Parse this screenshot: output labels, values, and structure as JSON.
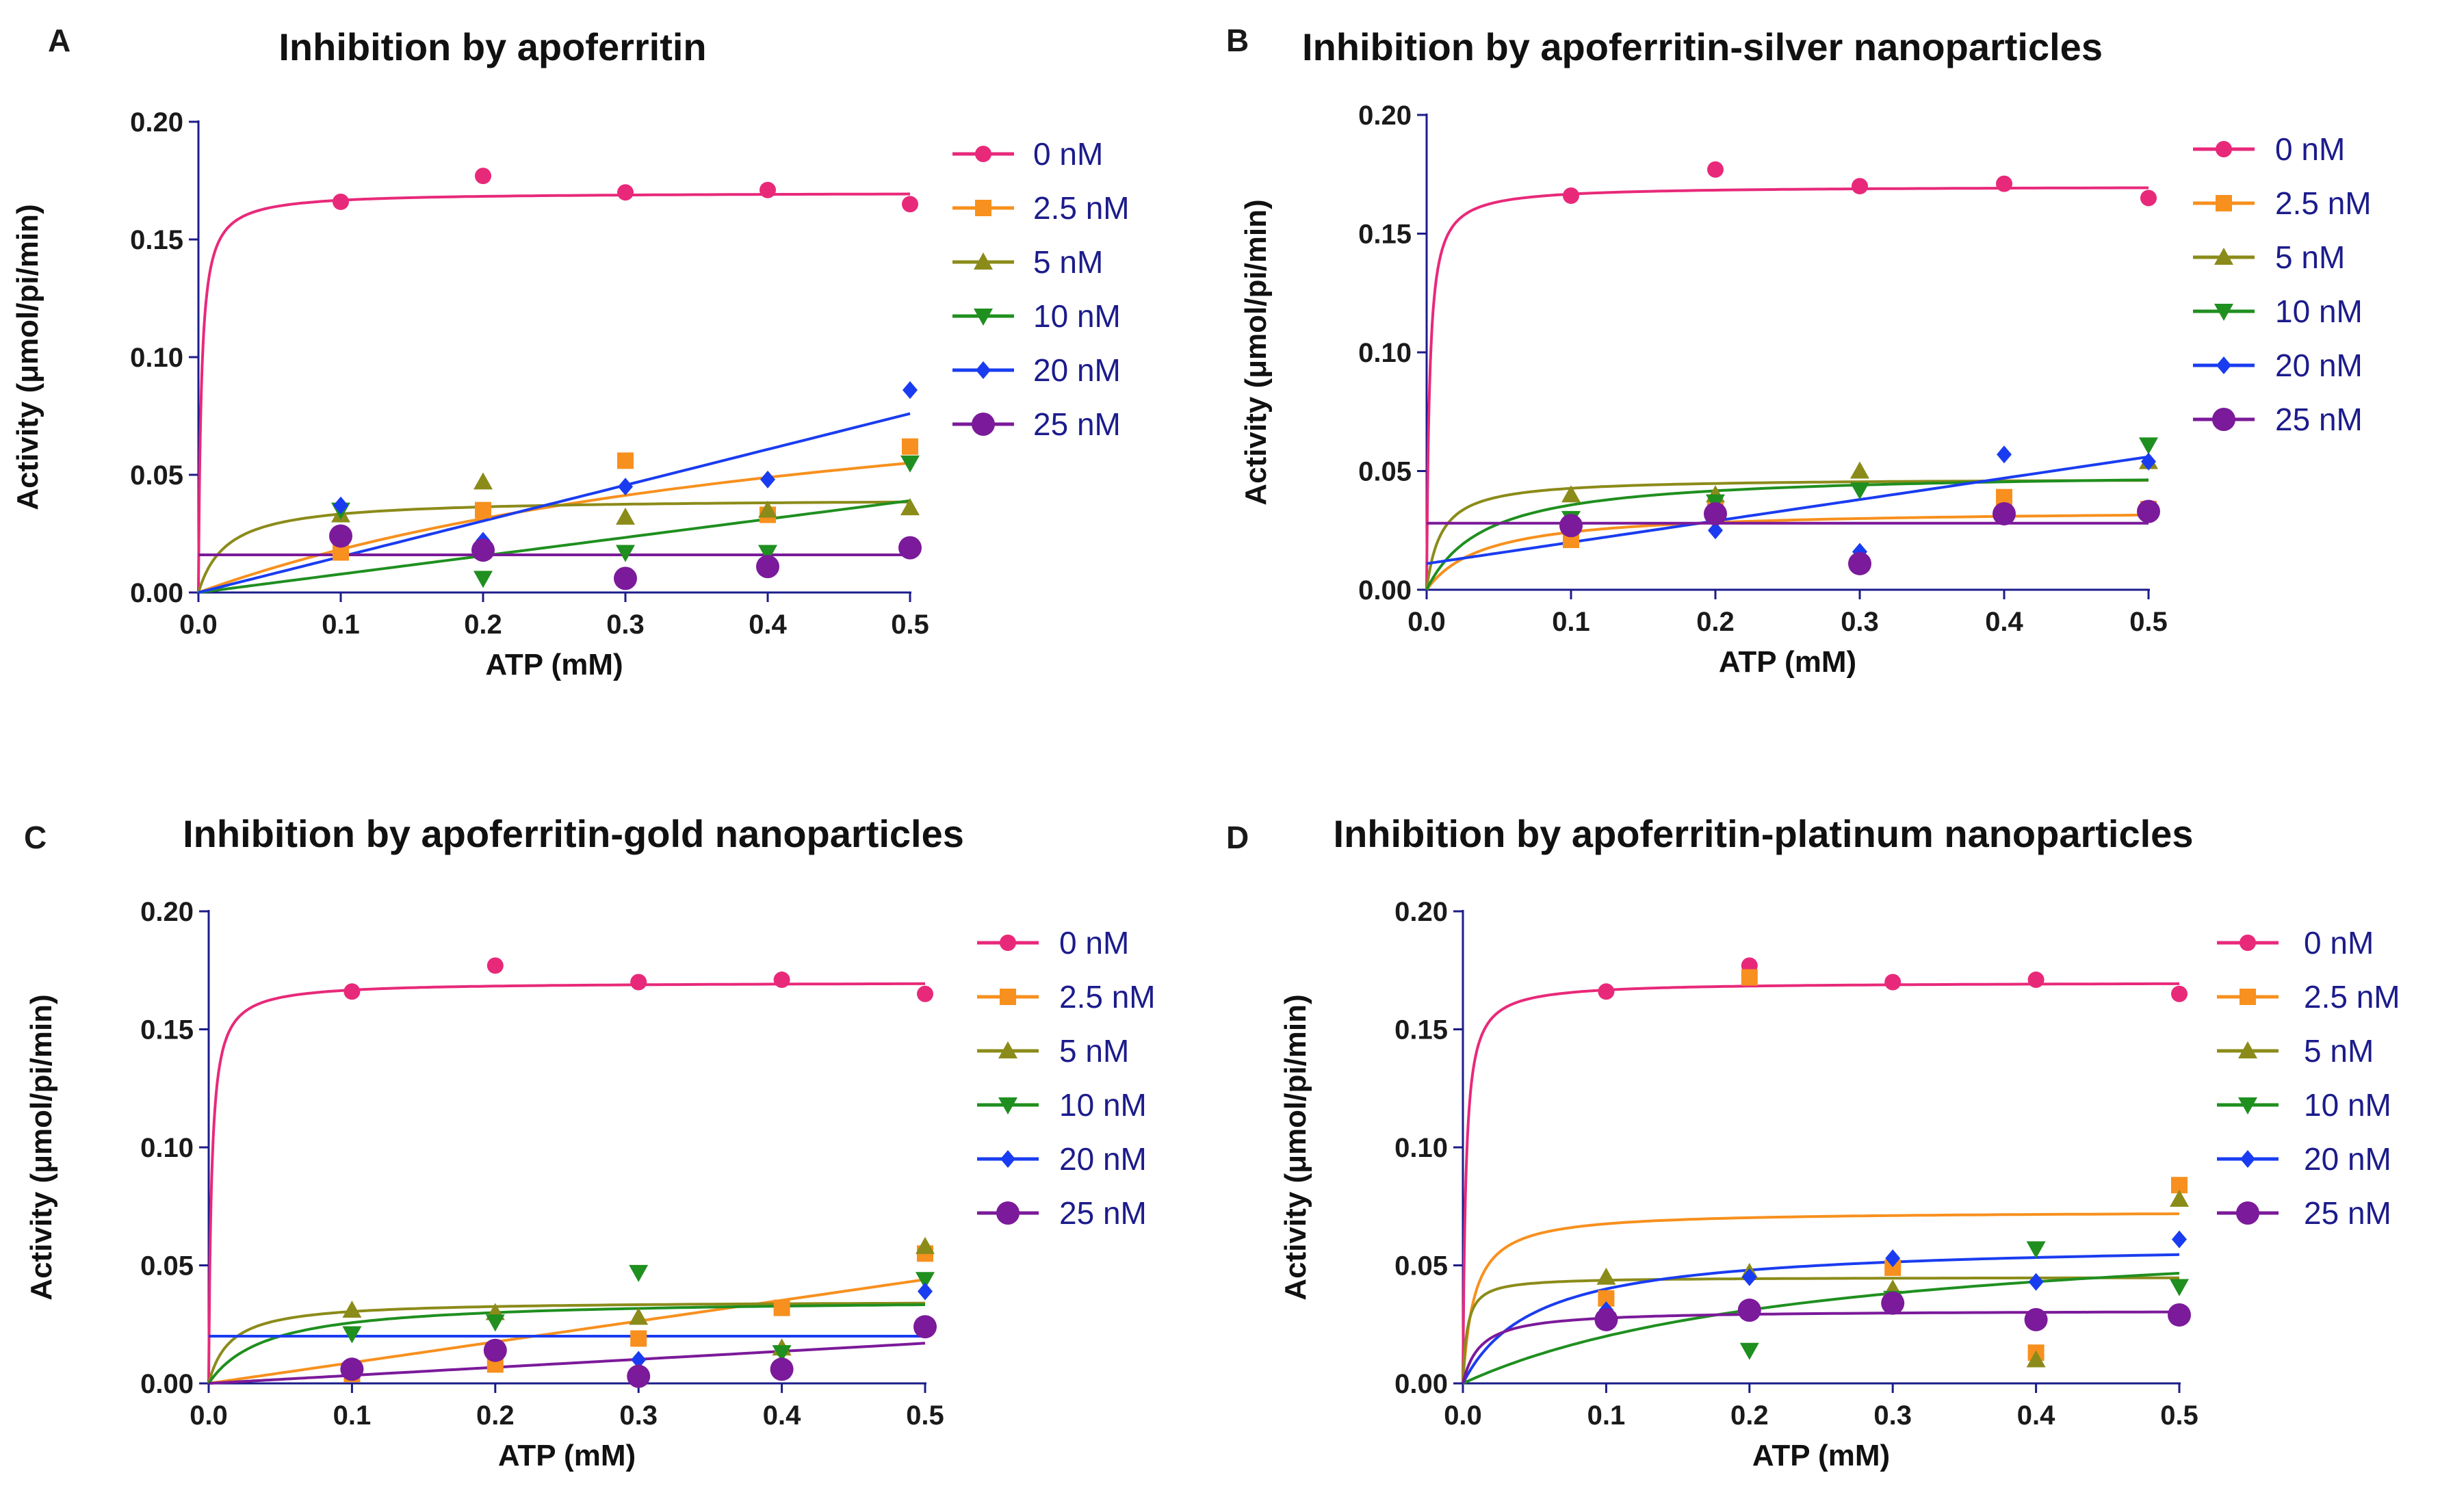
{
  "chart_data": [
    {
      "type": "scatter",
      "letter": "A",
      "title": "Inhibition by apoferritin",
      "xlabel": "ATP (mM)",
      "ylabel": "Activity (μmol/pi/min)",
      "xlim": [
        0,
        0.5
      ],
      "ylim": [
        0,
        0.2
      ],
      "xticks": [
        "0.0",
        "0.1",
        "0.2",
        "0.3",
        "0.4",
        "0.5"
      ],
      "yticks": [
        "0.00",
        "0.05",
        "0.10",
        "0.15",
        "0.20"
      ],
      "legend_position": "right",
      "x": [
        0.1,
        0.2,
        0.3,
        0.4,
        0.5
      ],
      "series": [
        {
          "name": "0 nM",
          "marker": "circle",
          "color": "#e8297a",
          "values": [
            0.166,
            0.177,
            0.17,
            0.171,
            0.165
          ],
          "fit": {
            "kind": "mm",
            "vmax": 0.17,
            "km": 0.002
          }
        },
        {
          "name": "2.5 nM",
          "marker": "square",
          "color": "#f7901e",
          "values": [
            0.017,
            0.035,
            0.056,
            0.033,
            0.062
          ],
          "fit": {
            "kind": "mm",
            "vmax": 0.11,
            "km": 0.5
          }
        },
        {
          "name": "5 nM",
          "marker": "triangle-up",
          "color": "#8b8b1a",
          "values": [
            0.033,
            0.047,
            0.032,
            0.035,
            0.036
          ],
          "fit": {
            "kind": "mm",
            "vmax": 0.04,
            "km": 0.02
          }
        },
        {
          "name": "10 nM",
          "marker": "triangle-down",
          "color": "#1f8f1f",
          "values": [
            0.035,
            0.006,
            0.017,
            0.017,
            0.055
          ],
          "fit": {
            "kind": "line",
            "slope": 0.078,
            "intercept": 0.0
          }
        },
        {
          "name": "20 nM",
          "marker": "diamond",
          "color": "#1a3cf0",
          "values": [
            0.037,
            0.022,
            0.045,
            0.048,
            0.086
          ],
          "fit": {
            "kind": "line",
            "slope": 0.152,
            "intercept": 0.0
          }
        },
        {
          "name": "25 nM",
          "marker": "circle-large",
          "color": "#7b1a9a",
          "values": [
            0.024,
            0.018,
            0.006,
            0.011,
            0.019
          ],
          "fit": {
            "kind": "const",
            "value": 0.016
          }
        }
      ]
    },
    {
      "type": "scatter",
      "letter": "B",
      "title": "Inhibition by apoferritin-silver nanoparticles",
      "xlabel": "ATP (mM)",
      "ylabel": "Activity (μmol/pi/min)",
      "xlim": [
        0,
        0.5
      ],
      "ylim": [
        0,
        0.2
      ],
      "xticks": [
        "0.0",
        "0.1",
        "0.2",
        "0.3",
        "0.4",
        "0.5"
      ],
      "yticks": [
        "0.00",
        "0.05",
        "0.10",
        "0.15",
        "0.20"
      ],
      "legend_position": "right",
      "x": [
        0.1,
        0.2,
        0.3,
        0.4,
        0.5
      ],
      "series": [
        {
          "name": "0 nM",
          "marker": "circle",
          "color": "#e8297a",
          "values": [
            0.166,
            0.177,
            0.17,
            0.171,
            0.165
          ],
          "fit": {
            "kind": "mm",
            "vmax": 0.17,
            "km": 0.002
          }
        },
        {
          "name": "2.5 nM",
          "marker": "square",
          "color": "#f7901e",
          "values": [
            0.021,
            0.034,
            0.011,
            0.039,
            0.034
          ],
          "fit": {
            "kind": "mm",
            "vmax": 0.034,
            "km": 0.04
          }
        },
        {
          "name": "5 nM",
          "marker": "triangle-up",
          "color": "#8b8b1a",
          "values": [
            0.04,
            0.04,
            0.05,
            0.033,
            0.054
          ],
          "fit": {
            "kind": "mm",
            "vmax": 0.047,
            "km": 0.01
          }
        },
        {
          "name": "10 nM",
          "marker": "triangle-down",
          "color": "#1f8f1f",
          "values": [
            0.03,
            0.037,
            0.042,
            0.031,
            0.061
          ],
          "fit": {
            "kind": "mm",
            "vmax": 0.05,
            "km": 0.04
          }
        },
        {
          "name": "20 nM",
          "marker": "diamond",
          "color": "#1a3cf0",
          "values": [
            0.026,
            0.025,
            0.016,
            0.057,
            0.054
          ],
          "fit": {
            "kind": "line",
            "slope": 0.09,
            "intercept": 0.011
          }
        },
        {
          "name": "25 nM",
          "marker": "circle-large",
          "color": "#7b1a9a",
          "values": [
            0.027,
            0.032,
            0.011,
            0.032,
            0.033
          ],
          "fit": {
            "kind": "const",
            "value": 0.028
          }
        }
      ]
    },
    {
      "type": "scatter",
      "letter": "C",
      "title": "Inhibition by apoferritin-gold nanoparticles",
      "xlabel": "ATP (mM)",
      "ylabel": "Activity (μmol/pi/min)",
      "xlim": [
        0,
        0.5
      ],
      "ylim": [
        0,
        0.2
      ],
      "xticks": [
        "0.0",
        "0.1",
        "0.2",
        "0.3",
        "0.4",
        "0.5"
      ],
      "yticks": [
        "0.00",
        "0.05",
        "0.10",
        "0.15",
        "0.20"
      ],
      "legend_position": "right",
      "x": [
        0.1,
        0.2,
        0.3,
        0.4,
        0.5
      ],
      "series": [
        {
          "name": "0 nM",
          "marker": "circle",
          "color": "#e8297a",
          "values": [
            0.166,
            0.177,
            0.17,
            0.171,
            0.165
          ],
          "fit": {
            "kind": "mm",
            "vmax": 0.17,
            "km": 0.002
          }
        },
        {
          "name": "2.5 nM",
          "marker": "square",
          "color": "#f7901e",
          "values": [
            0.004,
            0.008,
            0.019,
            0.032,
            0.055
          ],
          "fit": {
            "kind": "line",
            "slope": 0.088,
            "intercept": 0.0
          }
        },
        {
          "name": "5 nM",
          "marker": "triangle-up",
          "color": "#8b8b1a",
          "values": [
            0.031,
            0.03,
            0.028,
            0.015,
            0.058
          ],
          "fit": {
            "kind": "mm",
            "vmax": 0.035,
            "km": 0.015
          }
        },
        {
          "name": "10 nM",
          "marker": "triangle-down",
          "color": "#1f8f1f",
          "values": [
            0.021,
            0.026,
            0.047,
            0.013,
            0.044
          ],
          "fit": {
            "kind": "mm",
            "vmax": 0.036,
            "km": 0.04
          }
        },
        {
          "name": "20 nM",
          "marker": "diamond",
          "color": "#1a3cf0",
          "values": [
            0.005,
            0.015,
            0.01,
            0.006,
            0.039
          ],
          "fit": {
            "kind": "const",
            "value": 0.02
          }
        },
        {
          "name": "25 nM",
          "marker": "circle-large",
          "color": "#7b1a9a",
          "values": [
            0.006,
            0.014,
            0.003,
            0.006,
            0.024
          ],
          "fit": {
            "kind": "line",
            "slope": 0.034,
            "intercept": 0.0
          }
        }
      ]
    },
    {
      "type": "scatter",
      "letter": "D",
      "title": "Inhibition by apoferritin-platinum nanoparticles",
      "xlabel": "ATP (mM)",
      "ylabel": "Activity (μmol/pi/min)",
      "xlim": [
        0,
        0.5
      ],
      "ylim": [
        0,
        0.2
      ],
      "xticks": [
        "0.0",
        "0.1",
        "0.2",
        "0.3",
        "0.4",
        "0.5"
      ],
      "yticks": [
        "0.00",
        "0.05",
        "0.10",
        "0.15",
        "0.20"
      ],
      "legend_position": "right",
      "x": [
        0.1,
        0.2,
        0.3,
        0.4,
        0.5
      ],
      "series": [
        {
          "name": "0 nM",
          "marker": "circle",
          "color": "#e8297a",
          "values": [
            0.166,
            0.177,
            0.17,
            0.171,
            0.165
          ],
          "fit": {
            "kind": "mm",
            "vmax": 0.17,
            "km": 0.002
          }
        },
        {
          "name": "2.5 nM",
          "marker": "square",
          "color": "#f7901e",
          "values": [
            0.036,
            0.172,
            0.049,
            0.013,
            0.084
          ],
          "fit": {
            "kind": "mm",
            "vmax": 0.073,
            "km": 0.008
          }
        },
        {
          "name": "5 nM",
          "marker": "triangle-up",
          "color": "#8b8b1a",
          "values": [
            0.045,
            0.047,
            0.04,
            0.01,
            0.078
          ],
          "fit": {
            "kind": "mm",
            "vmax": 0.045,
            "km": 0.003
          }
        },
        {
          "name": "10 nM",
          "marker": "triangle-down",
          "color": "#1f8f1f",
          "values": [
            0.027,
            0.014,
            0.036,
            0.057,
            0.041
          ],
          "fit": {
            "kind": "mm",
            "vmax": 0.07,
            "km": 0.25
          }
        },
        {
          "name": "20 nM",
          "marker": "diamond",
          "color": "#1a3cf0",
          "values": [
            0.031,
            0.045,
            0.053,
            0.043,
            0.061
          ],
          "fit": {
            "kind": "mm",
            "vmax": 0.06,
            "km": 0.05
          }
        },
        {
          "name": "25 nM",
          "marker": "circle-large",
          "color": "#7b1a9a",
          "values": [
            0.027,
            0.031,
            0.034,
            0.027,
            0.029
          ],
          "fit": {
            "kind": "mm",
            "vmax": 0.031,
            "km": 0.012
          }
        }
      ]
    }
  ]
}
